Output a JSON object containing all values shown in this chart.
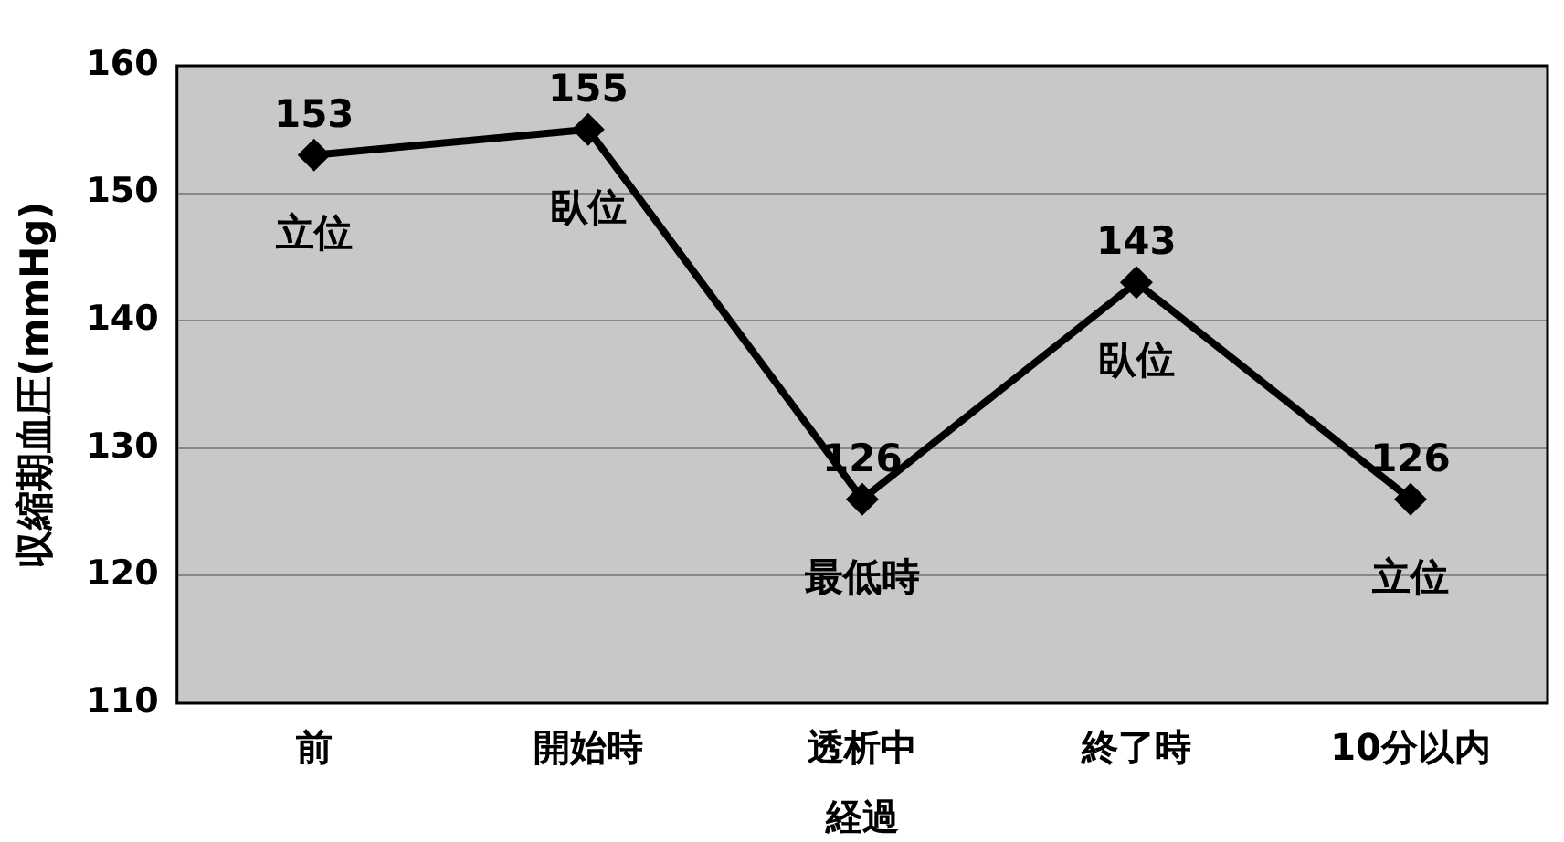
{
  "chart_data": {
    "type": "line",
    "xlabel": "経過",
    "ylabel": "収縮期血圧(mmHg)",
    "categories": [
      "前",
      "開始時",
      "透析中",
      "終了時",
      "10分以内"
    ],
    "series": [
      {
        "color": "#000000",
        "values": [
          153,
          155,
          126,
          143,
          126
        ]
      }
    ],
    "ylim": [
      110,
      160
    ],
    "yticks": [
      110,
      120,
      130,
      140,
      150,
      160
    ],
    "grid": "y",
    "legend": false,
    "marker": "diamond",
    "line_style": "solid",
    "data_labels": true,
    "annotations": [
      {
        "text": "立位",
        "x": "前",
        "y": 153
      },
      {
        "text": "臥位",
        "x": "開始時",
        "y": 155
      },
      {
        "text": "最低時",
        "x": "透析中",
        "y": 126
      },
      {
        "text": "臥位",
        "x": "終了時",
        "y": 143
      },
      {
        "text": "立位",
        "x": "10分以内",
        "y": 126
      }
    ]
  }
}
